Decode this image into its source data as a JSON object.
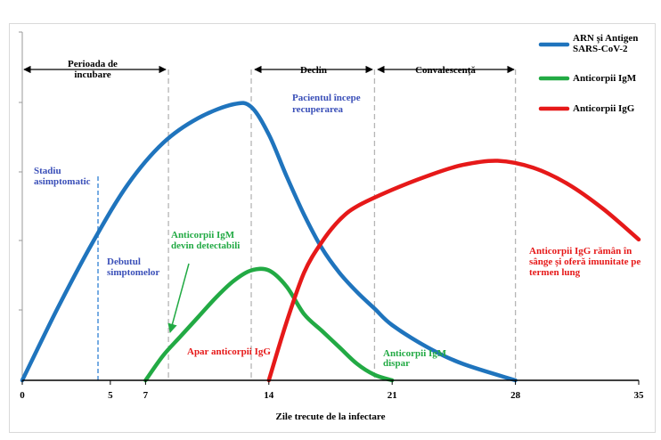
{
  "chart_data": {
    "type": "line",
    "xlabel": "Zile trecute de la infectare",
    "x_ticks": [
      0,
      5,
      7,
      14,
      21,
      28,
      35
    ],
    "xlim": [
      0,
      35
    ],
    "ylim": [
      0,
      10
    ],
    "series": [
      {
        "name": "ARN și Antigen SARS-CoV-2",
        "color": "#1f74bd",
        "points": [
          [
            0,
            0
          ],
          [
            2,
            2.6
          ],
          [
            4,
            5.0
          ],
          [
            6,
            7.1
          ],
          [
            8,
            8.6
          ],
          [
            10,
            9.5
          ],
          [
            12,
            10.0
          ],
          [
            13,
            9.9
          ],
          [
            14,
            8.9
          ],
          [
            15,
            7.4
          ],
          [
            16,
            6.0
          ],
          [
            17,
            4.8
          ],
          [
            18,
            3.9
          ],
          [
            19,
            3.2
          ],
          [
            20,
            2.6
          ],
          [
            21,
            2.0
          ],
          [
            23,
            1.2
          ],
          [
            25,
            0.6
          ],
          [
            28,
            0
          ]
        ]
      },
      {
        "name": "Anticorpii IgM",
        "color": "#22aa44",
        "points": [
          [
            7,
            0
          ],
          [
            8,
            0.9
          ],
          [
            9,
            1.6
          ],
          [
            10,
            2.3
          ],
          [
            11,
            3.0
          ],
          [
            12,
            3.6
          ],
          [
            13,
            3.98
          ],
          [
            14,
            3.98
          ],
          [
            15,
            3.4
          ],
          [
            16,
            2.4
          ],
          [
            17,
            1.8
          ],
          [
            18,
            1.2
          ],
          [
            19,
            0.6
          ],
          [
            20,
            0.2
          ],
          [
            21,
            0
          ]
        ]
      },
      {
        "name": "Anticorpii IgG",
        "color": "#e61919",
        "points": [
          [
            14,
            0
          ],
          [
            15,
            2.1
          ],
          [
            16,
            3.9
          ],
          [
            17,
            5.0
          ],
          [
            18,
            5.8
          ],
          [
            19,
            6.3
          ],
          [
            21,
            6.9
          ],
          [
            23,
            7.4
          ],
          [
            25,
            7.8
          ],
          [
            27,
            7.95
          ],
          [
            29,
            7.7
          ],
          [
            31,
            7.1
          ],
          [
            33,
            6.2
          ],
          [
            35,
            5.1
          ]
        ]
      }
    ],
    "phases": [
      {
        "label": "Perioada de incubare",
        "start": 0,
        "end": 8.3
      },
      {
        "label": "Declin",
        "start": 13,
        "end": 20
      },
      {
        "label": "Convalescență",
        "start": 20,
        "end": 28
      }
    ],
    "annotations": {
      "stadiu": "Stadiu asimptomatic",
      "debutul": "Debutul simptomelor",
      "igm_detect": "Anticorpii IgM devin detectabili",
      "pacientul": "Pacientul începe recuperarea",
      "apar": "Apar anticorpii IgG",
      "igm_dispar": "Anticorpii IgM dispar",
      "igg_ramane": "Anticorpii IgG rămân în sânge și oferă imunitate pe termen lung"
    },
    "grid": false,
    "legend": "top-right"
  }
}
